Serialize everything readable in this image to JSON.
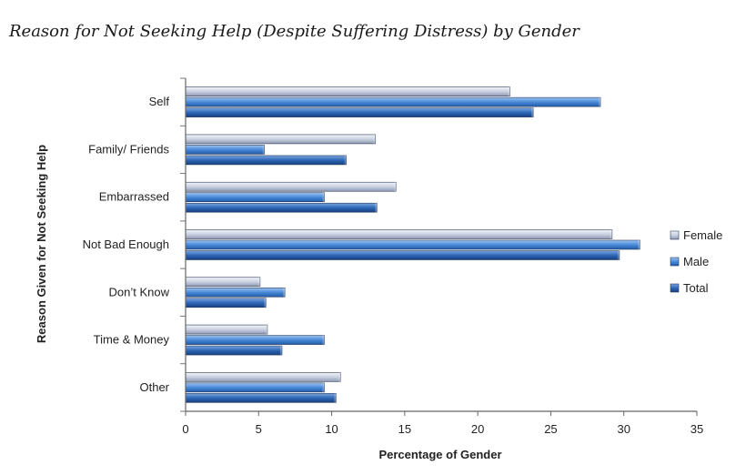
{
  "chart_data": {
    "type": "bar",
    "orientation": "horizontal",
    "title": "Reason for Not Seeking Help (Despite Suffering Distress) by Gender",
    "xlabel": "Percentage of Gender",
    "ylabel": "Reason Given for Not Seeking Help",
    "xlim": [
      0,
      35
    ],
    "xticks": [
      0,
      5,
      10,
      15,
      20,
      25,
      30,
      35
    ],
    "categories": [
      "Self",
      "Family/ Friends",
      "Embarrassed",
      "Not Bad Enough",
      "Don’t Know",
      "Time & Money",
      "Other"
    ],
    "series": [
      {
        "name": "Female",
        "color": "#c8d0e2",
        "values": [
          22.2,
          13.0,
          14.4,
          29.2,
          5.1,
          5.6,
          10.6
        ]
      },
      {
        "name": "Male",
        "color": "#3f7fd0",
        "values": [
          28.4,
          5.4,
          9.5,
          31.1,
          6.8,
          9.5,
          9.5
        ]
      },
      {
        "name": "Total",
        "color": "#2a5ea8",
        "values": [
          23.8,
          11.0,
          13.1,
          29.7,
          5.5,
          6.6,
          10.3
        ]
      }
    ],
    "legend_position": "right"
  }
}
